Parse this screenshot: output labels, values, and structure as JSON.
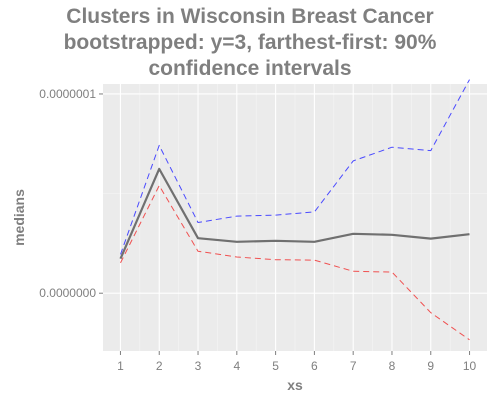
{
  "chart_data": {
    "type": "line",
    "title_lines": [
      "Clusters in Wisconsin Breast Cancer",
      "bootstrapped: y=3, farthest-first: 90%",
      "confidence intervals"
    ],
    "xlabel": "xs",
    "ylabel": "medians",
    "x": [
      1,
      2,
      3,
      4,
      5,
      6,
      7,
      8,
      9,
      10
    ],
    "x_tick_labels": [
      "1",
      "2",
      "3",
      "4",
      "5",
      "6",
      "7",
      "8",
      "9",
      "10"
    ],
    "y_ticks": [
      {
        "value": 0.0,
        "label": "0.0000000"
      },
      {
        "value": 1e-07,
        "label": "0.0000001"
      }
    ],
    "xlim": [
      0.55,
      10.45
    ],
    "ylim": [
      -2.9e-08,
      1.05e-07
    ],
    "grid": true,
    "series": [
      {
        "role": "upper",
        "color": "#4a4aff",
        "dash": "6,4",
        "width": 1,
        "values": [
          1.95e-08,
          7.42e-08,
          3.55e-08,
          3.87e-08,
          3.92e-08,
          4.08e-08,
          6.64e-08,
          7.33e-08,
          7.16e-08,
          1.072e-07
        ]
      },
      {
        "role": "median",
        "color": "#707070",
        "dash": "",
        "width": 2.2,
        "values": [
          1.73e-08,
          6.24e-08,
          2.76e-08,
          2.58e-08,
          2.63e-08,
          2.58e-08,
          2.98e-08,
          2.93e-08,
          2.74e-08,
          2.96e-08
        ]
      },
      {
        "role": "lower",
        "color": "#f05050",
        "dash": "6,4",
        "width": 1,
        "values": [
          1.52e-08,
          5.4e-08,
          2.11e-08,
          1.82e-08,
          1.68e-08,
          1.66e-08,
          1.1e-08,
          1.06e-08,
          -9.8e-09,
          -2.34e-08
        ]
      }
    ]
  }
}
